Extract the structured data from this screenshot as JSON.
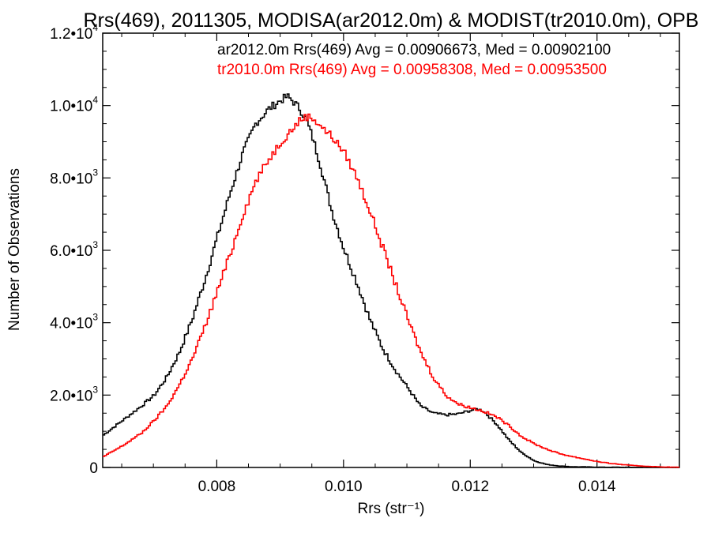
{
  "chart_data": {
    "type": "line",
    "title": "Rrs(469), 2011305, MODISA(ar2012.0m) & MODIST(tr2010.0m), OPB",
    "xlabel": "Rrs (str⁻¹)",
    "ylabel": "Number of Observations",
    "xlim": [
      0.0062,
      0.0153
    ],
    "ylim": [
      0,
      12000
    ],
    "x_ticks": [
      {
        "value": 0.008,
        "label": "0.008"
      },
      {
        "value": 0.01,
        "label": "0.010"
      },
      {
        "value": 0.012,
        "label": "0.012"
      },
      {
        "value": 0.014,
        "label": "0.014"
      }
    ],
    "y_ticks": [
      {
        "value": 0,
        "mant": "0",
        "exp": ""
      },
      {
        "value": 2000,
        "mant": "2.0•10",
        "exp": "3"
      },
      {
        "value": 4000,
        "mant": "4.0•10",
        "exp": "3"
      },
      {
        "value": 6000,
        "mant": "6.0•10",
        "exp": "3"
      },
      {
        "value": 8000,
        "mant": "8.0•10",
        "exp": "3"
      },
      {
        "value": 10000,
        "mant": "1.0•10",
        "exp": "4"
      },
      {
        "value": 12000,
        "mant": "1.2•10",
        "exp": "4"
      }
    ],
    "legend": [
      {
        "text": "ar2012.0m Rrs(469) Avg = 0.00906673, Med = 0.00902100",
        "color": "#000000"
      },
      {
        "text": "tr2010.0m Rrs(469) Avg = 0.00958308, Med = 0.00953500",
        "color": "#ff0000"
      }
    ],
    "series": [
      {
        "color": "#000000",
        "x": [
          0.0062,
          0.0065,
          0.0068,
          0.007,
          0.0072,
          0.0074,
          0.0076,
          0.0078,
          0.008,
          0.0082,
          0.0084,
          0.0086,
          0.0088,
          0.009,
          0.0091,
          0.0092,
          0.0093,
          0.0094,
          0.0095,
          0.0096,
          0.0097,
          0.0098,
          0.01,
          0.0102,
          0.0104,
          0.0106,
          0.0108,
          0.011,
          0.0112,
          0.0114,
          0.0116,
          0.0118,
          0.012,
          0.0121,
          0.0122,
          0.0124,
          0.0126,
          0.0128,
          0.013,
          0.0132,
          0.0134,
          0.0136,
          0.014,
          0.0145,
          0.0153
        ],
        "y": [
          900,
          1300,
          1700,
          2000,
          2500,
          3200,
          4100,
          5200,
          6400,
          7600,
          8700,
          9500,
          9900,
          10150,
          10250,
          10100,
          9900,
          9600,
          9100,
          8500,
          7800,
          7100,
          6000,
          5100,
          4100,
          3300,
          2700,
          2200,
          1700,
          1500,
          1450,
          1480,
          1580,
          1620,
          1550,
          1200,
          750,
          400,
          180,
          80,
          40,
          20,
          8,
          3,
          0
        ]
      },
      {
        "color": "#ff0000",
        "x": [
          0.0062,
          0.0065,
          0.0068,
          0.007,
          0.0072,
          0.0074,
          0.0076,
          0.0078,
          0.008,
          0.0082,
          0.0084,
          0.0086,
          0.0088,
          0.009,
          0.0092,
          0.0093,
          0.0094,
          0.0095,
          0.0096,
          0.0097,
          0.0098,
          0.01,
          0.0102,
          0.0104,
          0.0106,
          0.0108,
          0.011,
          0.0112,
          0.0114,
          0.0116,
          0.0118,
          0.012,
          0.0122,
          0.0124,
          0.0126,
          0.0128,
          0.013,
          0.0132,
          0.0134,
          0.0136,
          0.0138,
          0.014,
          0.0142,
          0.0145,
          0.0148,
          0.015,
          0.0153
        ],
        "y": [
          300,
          600,
          950,
          1300,
          1700,
          2300,
          3000,
          3900,
          4900,
          5900,
          7000,
          7900,
          8500,
          9000,
          9400,
          9600,
          9700,
          9650,
          9500,
          9300,
          9150,
          8700,
          8000,
          7100,
          6100,
          5100,
          4100,
          3200,
          2500,
          2000,
          1750,
          1650,
          1550,
          1400,
          1150,
          850,
          650,
          500,
          380,
          300,
          230,
          160,
          110,
          60,
          30,
          15,
          5
        ]
      }
    ]
  }
}
